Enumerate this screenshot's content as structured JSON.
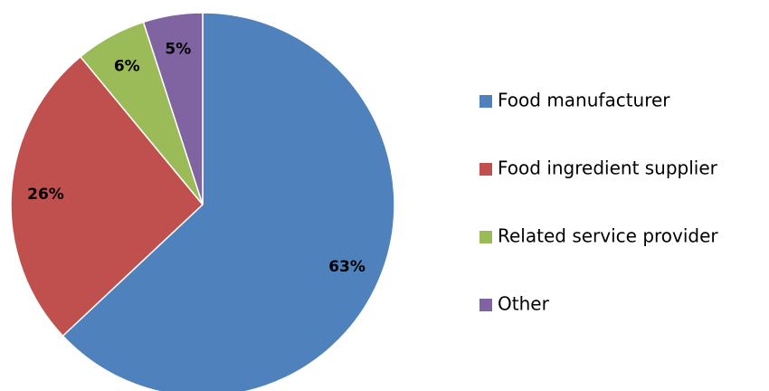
{
  "chart_data": {
    "type": "pie",
    "categories": [
      "Food manufacturer",
      "Food ingredient supplier",
      "Related service provider",
      "Other"
    ],
    "values": [
      63,
      26,
      6,
      5
    ],
    "value_labels": [
      "63%",
      "26%",
      "6%",
      "5%"
    ],
    "colors": [
      "#4f81bd",
      "#c0504d",
      "#9bbb59",
      "#8064a2"
    ],
    "legend": "right"
  }
}
